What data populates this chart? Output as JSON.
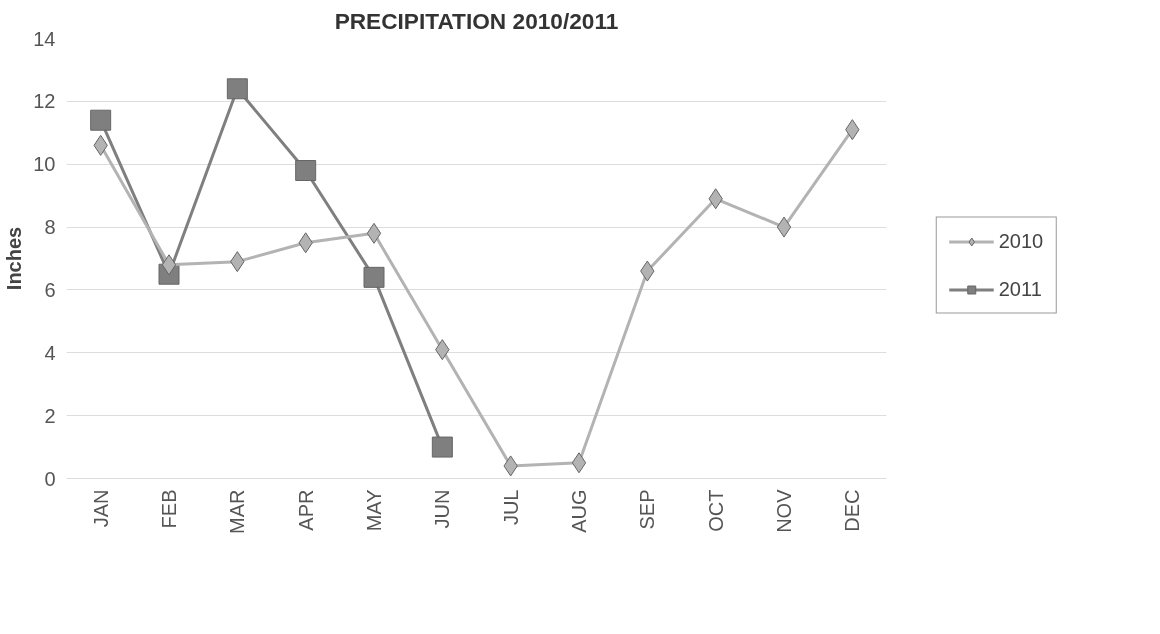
{
  "chart_data": {
    "type": "line",
    "title": "PRECIPITATION 2010/2011",
    "ylabel": "Inches",
    "categories": [
      "JAN",
      "FEB",
      "MAR",
      "APR",
      "MAY",
      "JUN",
      "JUL",
      "AUG",
      "SEP",
      "OCT",
      "NOV",
      "DEC"
    ],
    "series": [
      {
        "name": "2010",
        "color": "#b3b3b3",
        "marker": "diamond",
        "values": [
          10.6,
          6.8,
          6.9,
          7.5,
          7.8,
          4.1,
          0.4,
          0.5,
          6.6,
          8.9,
          8.0,
          11.1
        ]
      },
      {
        "name": "2011",
        "color": "#7f7f7f",
        "marker": "square",
        "values": [
          11.4,
          6.5,
          12.4,
          9.8,
          6.4,
          1.0,
          null,
          null,
          null,
          null,
          null,
          null
        ]
      }
    ],
    "ylim": [
      0,
      14
    ],
    "yticks": [
      0,
      2,
      4,
      6,
      8,
      10,
      12,
      14
    ],
    "grid": "y",
    "legend": "right"
  }
}
